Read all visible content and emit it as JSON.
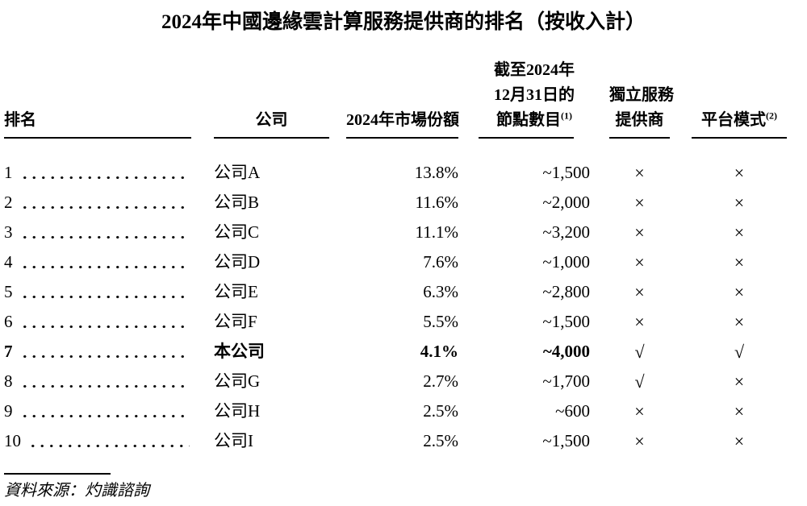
{
  "title": "2024年中國邊緣雲計算服務提供商的排名（按收入計）",
  "columns": {
    "rank": "排名",
    "company": "公司",
    "share": "2024年市場份額",
    "nodes_lines": [
      "截至2024年",
      "12月31日的",
      "節點數目"
    ],
    "nodes_footnote": "(1)",
    "independent_lines": [
      "獨立服務",
      "提供商"
    ],
    "platform": "平台模式",
    "platform_footnote": "(2)"
  },
  "symbols": {
    "yes": "√",
    "no": "×"
  },
  "rows": [
    {
      "rank": "1",
      "company": "公司A",
      "share": "13.8%",
      "nodes": "~1,500",
      "independent": "×",
      "platform": "×"
    },
    {
      "rank": "2",
      "company": "公司B",
      "share": "11.6%",
      "nodes": "~2,000",
      "independent": "×",
      "platform": "×"
    },
    {
      "rank": "3",
      "company": "公司C",
      "share": "11.1%",
      "nodes": "~3,200",
      "independent": "×",
      "platform": "×"
    },
    {
      "rank": "4",
      "company": "公司D",
      "share": "7.6%",
      "nodes": "~1,000",
      "independent": "×",
      "platform": "×"
    },
    {
      "rank": "5",
      "company": "公司E",
      "share": "6.3%",
      "nodes": "~2,800",
      "independent": "×",
      "platform": "×"
    },
    {
      "rank": "6",
      "company": "公司F",
      "share": "5.5%",
      "nodes": "~1,500",
      "independent": "×",
      "platform": "×"
    },
    {
      "rank": "7",
      "company": "本公司",
      "share": "4.1%",
      "nodes": "~4,000",
      "independent": "√",
      "platform": "√"
    },
    {
      "rank": "8",
      "company": "公司G",
      "share": "2.7%",
      "nodes": "~1,700",
      "independent": "√",
      "platform": "×"
    },
    {
      "rank": "9",
      "company": "公司H",
      "share": "2.5%",
      "nodes": "~600",
      "independent": "×",
      "platform": "×"
    },
    {
      "rank": "10",
      "company": "公司I",
      "share": "2.5%",
      "nodes": "~1,500",
      "independent": "×",
      "platform": "×"
    }
  ],
  "footer": {
    "source": "資料來源：灼識諮詢"
  }
}
